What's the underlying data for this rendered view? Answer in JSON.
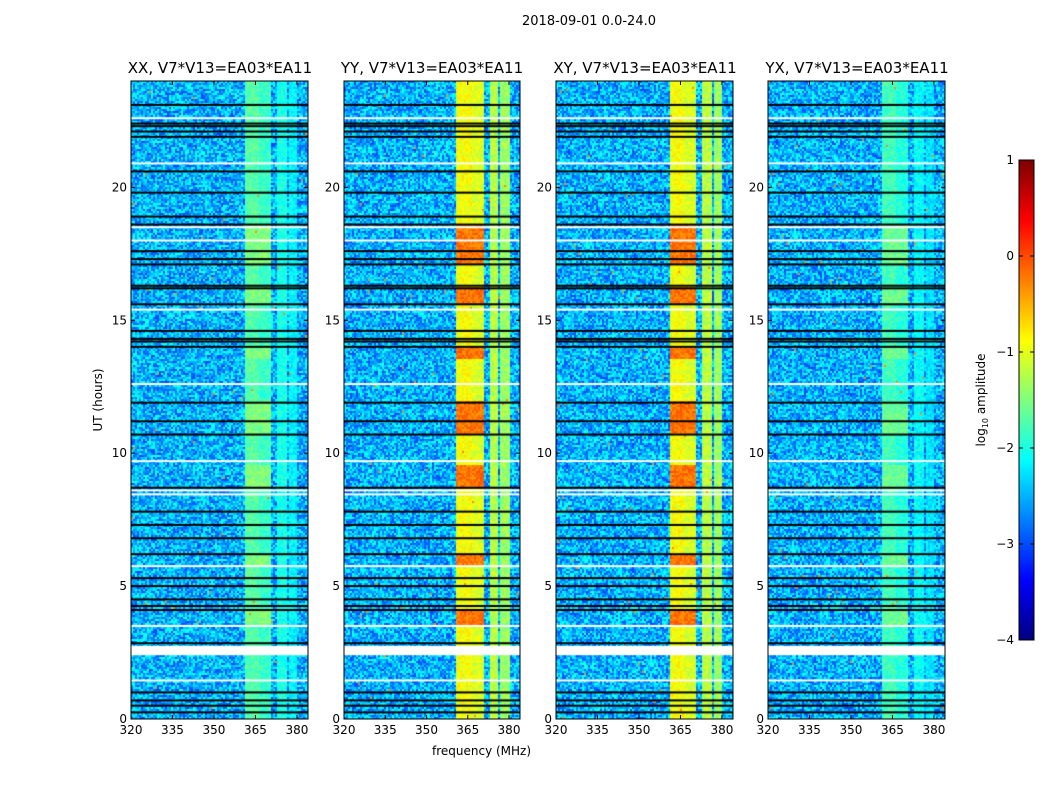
{
  "suptitle": "2018-09-01 0.0-24.0",
  "chart_data": {
    "type": "heatmap",
    "title": "2018-09-01 0.0-24.0",
    "xlabel": "frequency (MHz)",
    "ylabel": "UT (hours)",
    "xlim": [
      320,
      384
    ],
    "ylim": [
      0,
      24
    ],
    "xticks": [
      320,
      335,
      350,
      365,
      380
    ],
    "yticks": [
      0,
      5,
      10,
      15,
      20
    ],
    "colorbar": {
      "label_prefix": "log",
      "label_sub": "10",
      "label_suffix": " amplitude",
      "range": [
        -4,
        1
      ],
      "ticks": [
        1,
        0,
        -1,
        -2,
        -3,
        -4
      ],
      "tick_labels": [
        "1",
        "0",
        "−1",
        "−2",
        "−3",
        "−4"
      ],
      "colormap": "jet"
    },
    "background_level": -2.5,
    "rfi_bands_mhz": [
      [
        360.5,
        366
      ],
      [
        366,
        370.5
      ],
      [
        372.5,
        376
      ],
      [
        376.5,
        380
      ]
    ],
    "flagged_black_hours": [
      23.1,
      22.4,
      22.3,
      22.1,
      21.9,
      20.6,
      19.8,
      18.9,
      18.6,
      17.6,
      17.3,
      17.1,
      16.3,
      16.2,
      15.6,
      14.6,
      14.3,
      14.2,
      14.0,
      11.9,
      11.2,
      10.7,
      8.7,
      7.8,
      7.3,
      6.8,
      6.2,
      5.3,
      5.0,
      4.5,
      4.25,
      4.1,
      2.85,
      1.0,
      0.7,
      0.5,
      0.25
    ],
    "flagged_white_hours": [
      22.6,
      20.9,
      18.5,
      18.0,
      15.4,
      12.6,
      9.7,
      8.6,
      8.45,
      5.75,
      3.5,
      1.45
    ],
    "flagged_white_spans": [
      [
        2.4,
        2.75
      ]
    ],
    "burst_hours": [
      [
        17.1,
        18.6
      ],
      [
        15.6,
        16.3
      ],
      [
        10.7,
        12.0
      ],
      [
        8.7,
        9.6
      ],
      [
        5.75,
        6.2
      ],
      [
        13.6,
        14.0
      ],
      [
        3.6,
        4.1
      ]
    ],
    "panels": [
      {
        "title": "XX, V7*V13=EA03*EA11",
        "band_level": -1.7,
        "burst_level": -1.5
      },
      {
        "title": "YY, V7*V13=EA03*EA11",
        "band_level": -0.9,
        "burst_level": -0.2
      },
      {
        "title": "XY, V7*V13=EA03*EA11",
        "band_level": -0.9,
        "burst_level": -0.2
      },
      {
        "title": "YX, V7*V13=EA03*EA11",
        "band_level": -1.8,
        "burst_level": -1.6
      }
    ]
  }
}
